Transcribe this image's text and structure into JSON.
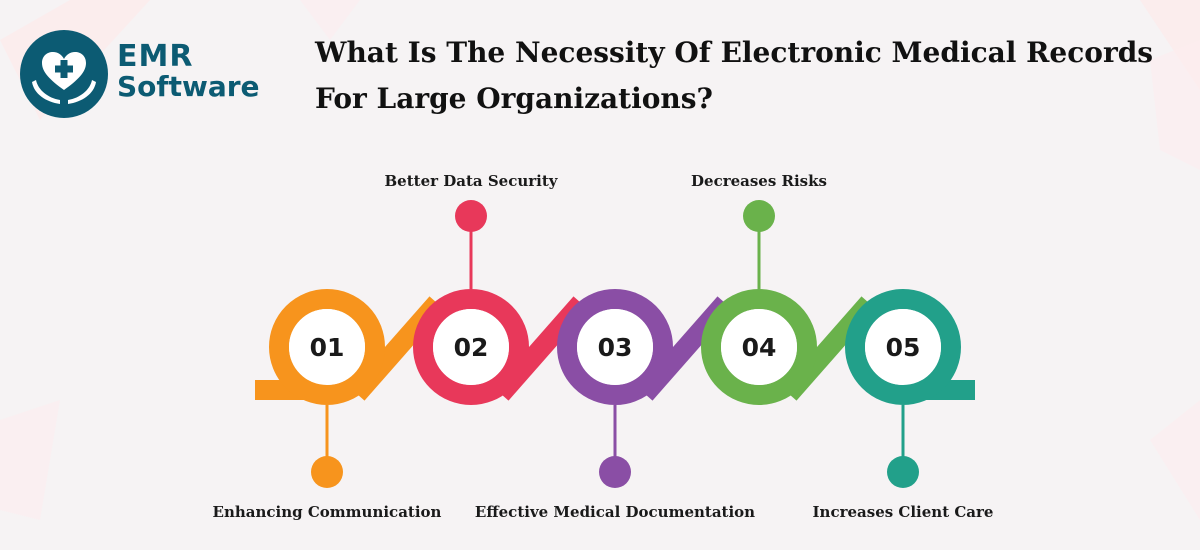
{
  "logo": {
    "brand_line1": "EMR",
    "brand_line2": "Software",
    "icon": "heart-in-hands-icon",
    "color": "#0c5b73"
  },
  "title": {
    "line1": "What Is The Necessity Of Electronic Medical Records",
    "line2": "For Large Organizations?"
  },
  "steps": [
    {
      "number": "01",
      "label": "Enhancing Communication",
      "color": "#f7941d",
      "label_position": "bottom"
    },
    {
      "number": "02",
      "label": "Better Data Security",
      "color": "#e8385a",
      "label_position": "top"
    },
    {
      "number": "03",
      "label": "Effective Medical Documentation",
      "color": "#8a4ea5",
      "label_position": "bottom"
    },
    {
      "number": "04",
      "label": "Decreases Risks",
      "color": "#6ab24b",
      "label_position": "top"
    },
    {
      "number": "05",
      "label": "Increases Client Care",
      "color": "#22a08a",
      "label_position": "bottom"
    }
  ]
}
